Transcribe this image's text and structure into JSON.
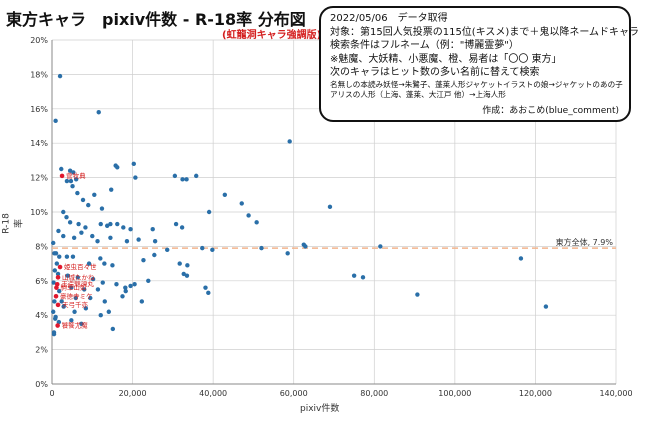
{
  "title": "東方キャラ　pixiv件数 - R-18率 分布図",
  "subtitle": "(虹龍洞キャラ強調版)",
  "note": {
    "lines": [
      "2022/05/06　データ取得",
      "対象：第15回人気投票の115位(キスメ)まで＋鬼以降ネームドキャラ",
      "検索条件はフルネーム（例：\"博麗霊夢\"）",
      "※魅魔、大妖精、小悪魔、橙、易者は「〇〇 東方」",
      "次のキャラはヒット数の多い名前に替えて検索"
    ],
    "small_lines": [
      "名無しの本読み妖怪→朱鷺子、蓬莱人形ジャケットイラストの娘→ジャケットのあの子",
      "アリスの人形（上海、蓬莱、大江戸 他）→上海人形"
    ],
    "author": "作成：あおこめ(blue_comment)"
  },
  "chart_data": {
    "type": "scatter",
    "xlabel": "pixiv件数",
    "ylabel": "R-18率",
    "xlim": [
      0,
      140000
    ],
    "ylim": [
      0,
      20
    ],
    "xticks": [
      "0",
      "20,000",
      "40,000",
      "60,000",
      "80,000",
      "100,000",
      "120,000",
      "140,000"
    ],
    "yticks": [
      "0%",
      "2%",
      "4%",
      "6%",
      "8%",
      "10%",
      "12%",
      "14%",
      "16%",
      "18%",
      "20%"
    ],
    "grid": true,
    "colors": {
      "main": "#2a6fa8",
      "highlight": "#e0182d",
      "avg_line": "#f2b48c"
    },
    "average": {
      "label": "東方全体, 7.9%",
      "value": 7.9
    },
    "points": [
      [
        2000,
        17.9
      ],
      [
        900,
        15.3
      ],
      [
        11600,
        15.8
      ],
      [
        59000,
        14.1
      ],
      [
        2300,
        12.5
      ],
      [
        4500,
        12.4
      ],
      [
        5300,
        12.3
      ],
      [
        6000,
        11.9
      ],
      [
        3700,
        11.8
      ],
      [
        4700,
        11.8
      ],
      [
        15800,
        12.7
      ],
      [
        16200,
        12.6
      ],
      [
        20300,
        12.8
      ],
      [
        20700,
        12.0
      ],
      [
        30500,
        12.1
      ],
      [
        32400,
        11.9
      ],
      [
        33400,
        11.9
      ],
      [
        35800,
        12.1
      ],
      [
        5100,
        11.5
      ],
      [
        6300,
        11.1
      ],
      [
        7700,
        10.7
      ],
      [
        10500,
        11.0
      ],
      [
        14700,
        11.3
      ],
      [
        9000,
        10.4
      ],
      [
        12400,
        10.2
      ],
      [
        2800,
        10.0
      ],
      [
        3600,
        9.7
      ],
      [
        4500,
        9.4
      ],
      [
        6600,
        9.3
      ],
      [
        8300,
        9.1
      ],
      [
        12100,
        9.3
      ],
      [
        13700,
        9.2
      ],
      [
        14500,
        9.3
      ],
      [
        16200,
        9.3
      ],
      [
        17700,
        9.1
      ],
      [
        19500,
        9.0
      ],
      [
        25000,
        9.0
      ],
      [
        30800,
        9.3
      ],
      [
        32300,
        9.1
      ],
      [
        39000,
        10.0
      ],
      [
        42900,
        11.0
      ],
      [
        47100,
        10.5
      ],
      [
        50800,
        9.4
      ],
      [
        48800,
        9.8
      ],
      [
        69000,
        10.3
      ],
      [
        1600,
        8.9
      ],
      [
        2800,
        8.6
      ],
      [
        5500,
        8.5
      ],
      [
        7300,
        8.8
      ],
      [
        10000,
        8.6
      ],
      [
        11300,
        8.3
      ],
      [
        14500,
        8.5
      ],
      [
        18600,
        8.3
      ],
      [
        21500,
        8.4
      ],
      [
        25600,
        8.3
      ],
      [
        28600,
        7.8
      ],
      [
        37300,
        7.9
      ],
      [
        39800,
        7.8
      ],
      [
        52000,
        7.9
      ],
      [
        58500,
        7.6
      ],
      [
        62500,
        8.1
      ],
      [
        62900,
        8.0
      ],
      [
        81500,
        8.0
      ],
      [
        1000,
        7.6
      ],
      [
        1800,
        7.4
      ],
      [
        3700,
        7.4
      ],
      [
        5200,
        7.4
      ],
      [
        9200,
        7.0
      ],
      [
        12000,
        7.3
      ],
      [
        13000,
        7.0
      ],
      [
        15000,
        6.9
      ],
      [
        22700,
        7.2
      ],
      [
        25400,
        7.5
      ],
      [
        31700,
        7.0
      ],
      [
        33600,
        6.9
      ],
      [
        75000,
        6.3
      ],
      [
        77200,
        6.2
      ],
      [
        116400,
        7.3
      ],
      [
        3900,
        6.3
      ],
      [
        6400,
        6.2
      ],
      [
        10200,
        6.1
      ],
      [
        12600,
        5.9
      ],
      [
        16000,
        5.8
      ],
      [
        19500,
        5.7
      ],
      [
        20500,
        5.8
      ],
      [
        23900,
        6.0
      ],
      [
        32700,
        6.4
      ],
      [
        33500,
        6.3
      ],
      [
        4800,
        5.6
      ],
      [
        8000,
        5.5
      ],
      [
        11400,
        5.5
      ],
      [
        18200,
        5.6
      ],
      [
        38100,
        5.6
      ],
      [
        38800,
        5.3
      ],
      [
        90700,
        5.2
      ],
      [
        5900,
        5.0
      ],
      [
        9500,
        5.0
      ],
      [
        13100,
        4.8
      ],
      [
        17500,
        5.1
      ],
      [
        18300,
        5.4
      ],
      [
        600,
        4.8
      ],
      [
        22300,
        4.8
      ],
      [
        2900,
        4.5
      ],
      [
        5600,
        4.2
      ],
      [
        8400,
        4.4
      ],
      [
        12100,
        4.0
      ],
      [
        14100,
        4.2
      ],
      [
        122600,
        4.5
      ],
      [
        800,
        3.8
      ],
      [
        4800,
        3.7
      ],
      [
        7300,
        3.5
      ],
      [
        15100,
        3.2
      ],
      [
        500,
        3.0
      ],
      [
        300,
        8.2
      ],
      [
        600,
        7.6
      ],
      [
        1200,
        7.0
      ],
      [
        700,
        6.6
      ],
      [
        1500,
        6.4
      ],
      [
        400,
        5.9
      ],
      [
        1800,
        5.4
      ],
      [
        2400,
        4.8
      ],
      [
        300,
        4.2
      ],
      [
        900,
        3.9
      ],
      [
        1700,
        3.6
      ],
      [
        500,
        2.9
      ]
    ],
    "highlighted": [
      {
        "name": "菅牧典",
        "x": 2500,
        "y": 12.1
      },
      {
        "name": "姫虫百々世",
        "x": 2000,
        "y": 6.8
      },
      {
        "name": "山城たかね",
        "x": 1500,
        "y": 6.2
      },
      {
        "name": "玉造魅須丸",
        "x": 1300,
        "y": 5.8
      },
      {
        "name": "駒草山如",
        "x": 1100,
        "y": 5.6
      },
      {
        "name": "豪徳寺ミケ",
        "x": 1000,
        "y": 5.1
      },
      {
        "name": "天弓千亦",
        "x": 1500,
        "y": 4.6
      },
      {
        "name": "饕餮尤魔",
        "x": 1400,
        "y": 3.4
      }
    ],
    "label_names": [
      "菅牧典",
      "姫虫百々世",
      "山城たかね",
      "玉造魅須丸",
      "駒草山如",
      "豪徳寺ミケ",
      "天弓千亦",
      "饕餮尤魔"
    ]
  }
}
